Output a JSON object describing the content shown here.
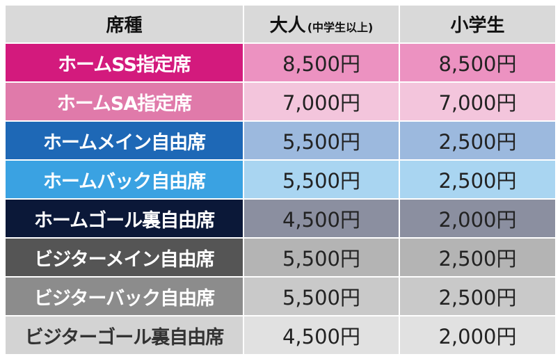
{
  "table": {
    "header": [
      "席種",
      {
        "main": "大人",
        "sub": "(中学生以上)"
      },
      "小学生"
    ],
    "rows": [
      [
        "ホームSS指定席",
        "8,500円",
        "8,500円"
      ],
      [
        "ホームSA指定席",
        "7,000円",
        "7,000円"
      ],
      [
        "ホームメイン自由席",
        "5,500円",
        "2,500円"
      ],
      [
        "ホームバック自由席",
        "5,500円",
        "2,500円"
      ],
      [
        "ホームゴール裏自由席",
        "4,500円",
        "2,000円"
      ],
      [
        "ビジターメイン自由席",
        "5,500円",
        "2,500円"
      ],
      [
        "ビジターバック自由席",
        "5,500円",
        "2,500円"
      ],
      [
        "ビジターゴール裏自由席",
        "4,500円",
        "2,000円"
      ]
    ]
  }
}
